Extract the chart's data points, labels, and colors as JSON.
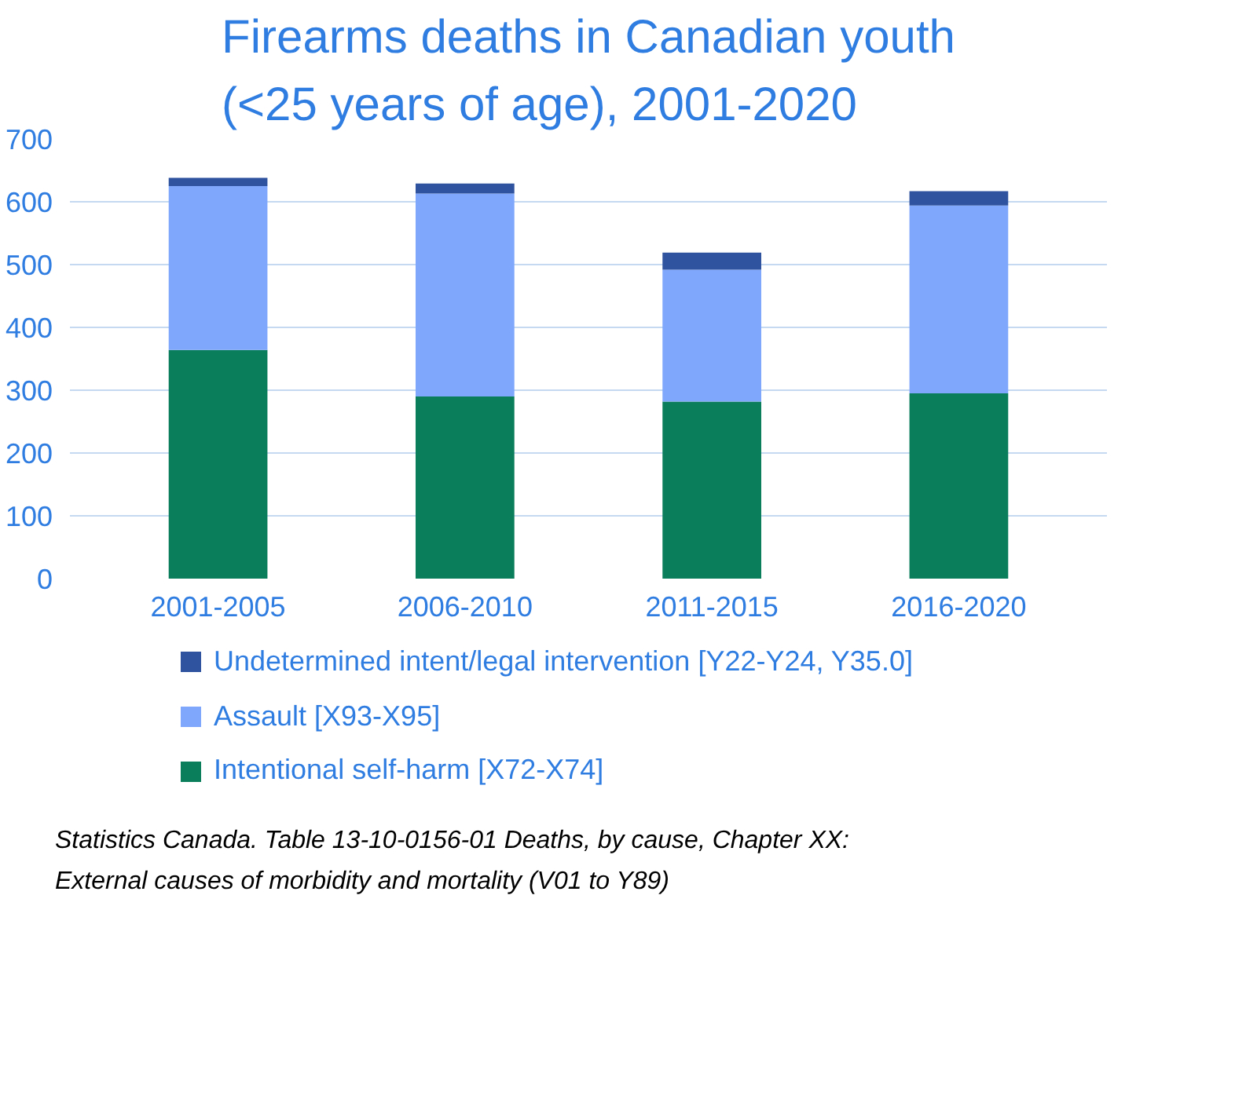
{
  "chart_data": {
    "type": "bar",
    "title": "Firearms deaths in Canadian youth (<25 years of age), 2001-2020",
    "categories": [
      "2001-2005",
      "2006-2010",
      "2011-2015",
      "2016-2020"
    ],
    "stacked": true,
    "series": [
      {
        "name": "Intentional self-harm [X72-X74]",
        "color": "#0a7d5a",
        "values": [
          364,
          290,
          282,
          295
        ]
      },
      {
        "name": "Assault [X93-X95]",
        "color": "#7fa7fb",
        "values": [
          261,
          323,
          210,
          299
        ]
      },
      {
        "name": "Undetermined intent/legal intervention [Y22-Y24, Y35.0]",
        "color": "#2f539f",
        "values": [
          13,
          16,
          27,
          23
        ]
      }
    ],
    "ylim": [
      0,
      700
    ],
    "yticks": [
      0,
      100,
      200,
      300,
      400,
      500,
      600,
      700
    ],
    "grid": "y",
    "legend": "bottom",
    "annotations": [
      "Statistics Canada. Table 13-10-0156-01 Deaths, by cause, Chapter XX:",
      "External causes of morbidity and mortality (V01 to Y89)"
    ]
  }
}
